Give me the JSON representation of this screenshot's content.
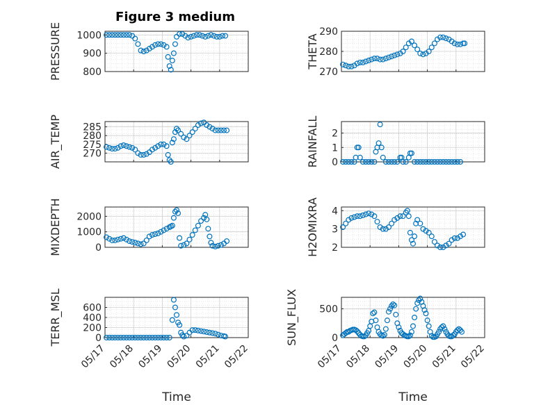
{
  "title": "Figure 3 medium",
  "colors": {
    "marker": "#0072BD",
    "grid": "#dcdcdc",
    "axis": "#262626"
  },
  "chart_data": [
    {
      "type": "scatter",
      "ylabel": "PRESSURE",
      "ylim": [
        800,
        1020
      ],
      "yticks": [
        800,
        900,
        1000
      ],
      "xlabel": "",
      "xticklabels": [],
      "xlim": [
        0,
        5
      ],
      "grid": true,
      "series": [
        {
          "x": [
            0.05,
            0.15,
            0.25,
            0.35,
            0.45,
            0.55,
            0.65,
            0.75,
            0.85,
            0.95,
            1.05,
            1.15,
            1.25,
            1.35,
            1.45,
            1.55,
            1.65,
            1.75,
            1.85,
            1.95,
            2.05,
            2.15,
            2.2,
            2.25,
            2.3,
            2.35,
            2.4,
            2.45,
            2.5,
            2.6,
            2.7,
            2.8,
            2.9,
            3.0,
            3.1,
            3.2,
            3.3,
            3.4,
            3.5,
            3.6,
            3.7,
            3.8,
            3.9,
            4.0,
            4.1,
            4.2
          ],
          "y": [
            1000,
            1000,
            1000,
            1000,
            1000,
            1000,
            1000,
            1000,
            1000,
            995,
            980,
            950,
            915,
            910,
            915,
            925,
            935,
            945,
            950,
            950,
            945,
            935,
            880,
            830,
            810,
            860,
            900,
            950,
            990,
            1005,
            1005,
            995,
            985,
            990,
            995,
            1000,
            1000,
            995,
            990,
            995,
            1000,
            995,
            990,
            990,
            995,
            995
          ]
        }
      ]
    },
    {
      "type": "scatter",
      "ylabel": "THETA",
      "ylim": [
        270,
        290
      ],
      "yticks": [
        270,
        280,
        290
      ],
      "xlabel": "",
      "xticklabels": [],
      "xlim": [
        0,
        5
      ],
      "grid": true,
      "series": [
        {
          "x": [
            0.05,
            0.15,
            0.25,
            0.35,
            0.45,
            0.55,
            0.65,
            0.75,
            0.85,
            0.95,
            1.05,
            1.15,
            1.25,
            1.35,
            1.45,
            1.55,
            1.65,
            1.75,
            1.85,
            1.95,
            2.05,
            2.15,
            2.25,
            2.35,
            2.45,
            2.55,
            2.65,
            2.75,
            2.85,
            2.95,
            3.05,
            3.15,
            3.25,
            3.35,
            3.45,
            3.55,
            3.65,
            3.75,
            3.85,
            3.95,
            4.05,
            4.15,
            4.25,
            4.3
          ],
          "y": [
            273.5,
            273,
            272.5,
            272.5,
            273,
            274,
            274.5,
            274.5,
            275,
            275.5,
            276,
            276.5,
            276.5,
            276,
            276,
            276.5,
            277,
            277.5,
            278,
            278.5,
            279,
            280,
            282,
            284,
            285,
            283,
            281,
            279,
            278.5,
            279,
            280,
            282,
            284,
            286,
            287,
            287,
            286.5,
            286,
            285,
            284,
            283.5,
            283.5,
            284,
            284
          ]
        }
      ]
    },
    {
      "type": "scatter",
      "ylabel": "AIR_TEMP",
      "ylim": [
        265,
        288
      ],
      "yticks": [
        270,
        275,
        280,
        285
      ],
      "xlabel": "",
      "xticklabels": [],
      "xlim": [
        0,
        5
      ],
      "grid": true,
      "series": [
        {
          "x": [
            0.05,
            0.15,
            0.25,
            0.35,
            0.45,
            0.55,
            0.65,
            0.75,
            0.85,
            0.95,
            1.05,
            1.15,
            1.25,
            1.35,
            1.45,
            1.55,
            1.65,
            1.75,
            1.85,
            1.95,
            2.05,
            2.15,
            2.2,
            2.25,
            2.3,
            2.35,
            2.4,
            2.45,
            2.5,
            2.55,
            2.65,
            2.75,
            2.85,
            2.95,
            3.05,
            3.15,
            3.25,
            3.35,
            3.45,
            3.55,
            3.65,
            3.75,
            3.85,
            3.95,
            4.05,
            4.15,
            4.25
          ],
          "y": [
            273.5,
            273,
            272.5,
            272.5,
            273,
            274,
            274.5,
            274,
            273.5,
            273,
            272,
            270,
            269,
            269,
            269.5,
            270.5,
            272,
            273,
            274,
            275,
            275,
            274,
            269,
            266,
            265,
            276,
            278,
            282,
            284,
            283,
            281,
            279,
            278,
            280,
            282,
            284,
            286,
            287,
            287.5,
            286,
            285,
            284,
            283,
            283,
            283,
            283,
            283
          ]
        }
      ]
    },
    {
      "type": "scatter",
      "ylabel": "RAINFALL",
      "ylim": [
        0,
        2.8
      ],
      "yticks": [
        0,
        1,
        2
      ],
      "xlabel": "",
      "xticklabels": [],
      "xlim": [
        0,
        5
      ],
      "grid": true,
      "series": [
        {
          "x": [
            0.05,
            0.15,
            0.25,
            0.35,
            0.45,
            0.5,
            0.55,
            0.6,
            0.65,
            0.75,
            0.85,
            0.95,
            1.05,
            1.15,
            1.2,
            1.25,
            1.3,
            1.35,
            1.4,
            1.45,
            1.55,
            1.65,
            1.75,
            1.85,
            1.95,
            2.05,
            2.1,
            2.15,
            2.25,
            2.35,
            2.4,
            2.45,
            2.55,
            2.65,
            2.75,
            2.85,
            2.95,
            3.05,
            3.15,
            3.25,
            3.35,
            3.45,
            3.55,
            3.65,
            3.75,
            3.85,
            3.95,
            4.05,
            4.15
          ],
          "y": [
            0,
            0,
            0,
            0,
            0,
            0.3,
            1.0,
            1.0,
            0.3,
            0,
            0,
            0,
            0,
            0,
            0.7,
            1.0,
            1.3,
            2.6,
            1.0,
            0.3,
            0,
            0,
            0,
            0,
            0,
            0.3,
            0.3,
            0,
            0,
            0.3,
            0.6,
            0.6,
            0,
            0,
            0,
            0,
            0,
            0,
            0,
            0,
            0,
            0,
            0,
            0,
            0,
            0,
            0,
            0,
            0
          ]
        }
      ]
    },
    {
      "type": "scatter",
      "ylabel": "MIXDEPTH",
      "ylim": [
        0,
        2600
      ],
      "yticks": [
        0,
        1000,
        2000
      ],
      "xlabel": "",
      "xticklabels": [],
      "xlim": [
        0,
        5
      ],
      "grid": true,
      "series": [
        {
          "x": [
            0.05,
            0.15,
            0.25,
            0.35,
            0.45,
            0.55,
            0.65,
            0.75,
            0.85,
            0.95,
            1.05,
            1.15,
            1.25,
            1.35,
            1.45,
            1.55,
            1.65,
            1.75,
            1.85,
            1.95,
            2.05,
            2.15,
            2.25,
            2.3,
            2.35,
            2.4,
            2.45,
            2.5,
            2.55,
            2.6,
            2.65,
            2.75,
            2.85,
            2.95,
            3.05,
            3.15,
            3.25,
            3.35,
            3.45,
            3.5,
            3.55,
            3.6,
            3.65,
            3.7,
            3.75,
            3.85,
            3.95,
            4.05,
            4.15,
            4.25
          ],
          "y": [
            650,
            550,
            450,
            450,
            500,
            550,
            600,
            500,
            400,
            350,
            300,
            250,
            200,
            250,
            450,
            700,
            800,
            850,
            900,
            1000,
            1100,
            1200,
            1300,
            1350,
            1400,
            1900,
            2300,
            2400,
            2200,
            600,
            100,
            150,
            250,
            500,
            800,
            1100,
            1400,
            1700,
            1900,
            2100,
            1800,
            1200,
            700,
            300,
            100,
            50,
            100,
            150,
            250,
            400
          ]
        }
      ]
    },
    {
      "type": "scatter",
      "ylabel": "H2OMIXRA",
      "ylim": [
        2,
        4.2
      ],
      "yticks": [
        2,
        3,
        4
      ],
      "xlabel": "",
      "xticklabels": [],
      "xlim": [
        0,
        5
      ],
      "grid": true,
      "series": [
        {
          "x": [
            0.05,
            0.15,
            0.25,
            0.35,
            0.45,
            0.55,
            0.65,
            0.75,
            0.85,
            0.95,
            1.05,
            1.15,
            1.25,
            1.35,
            1.45,
            1.55,
            1.65,
            1.75,
            1.85,
            1.95,
            2.05,
            2.15,
            2.25,
            2.3,
            2.35,
            2.4,
            2.45,
            2.5,
            2.55,
            2.6,
            2.65,
            2.75,
            2.85,
            2.95,
            3.05,
            3.15,
            3.25,
            3.35,
            3.45,
            3.55,
            3.65,
            3.75,
            3.85,
            3.95,
            4.05,
            4.15,
            4.25
          ],
          "y": [
            3.1,
            3.3,
            3.5,
            3.6,
            3.65,
            3.7,
            3.7,
            3.75,
            3.8,
            3.85,
            3.8,
            3.7,
            3.4,
            3.1,
            3.0,
            3.0,
            3.1,
            3.3,
            3.5,
            3.6,
            3.7,
            3.7,
            3.9,
            4.0,
            3.7,
            2.8,
            2.4,
            2.2,
            2.6,
            3.3,
            3.5,
            3.3,
            3.0,
            2.9,
            2.8,
            2.6,
            2.3,
            2.1,
            2.0,
            2.0,
            2.1,
            2.2,
            2.4,
            2.5,
            2.5,
            2.6,
            2.7
          ]
        }
      ]
    },
    {
      "type": "scatter",
      "ylabel": "TERR_MSL",
      "ylim": [
        0,
        800
      ],
      "yticks": [
        0,
        200,
        400,
        600
      ],
      "xlabel": "Time",
      "xticklabels": [
        "05/17",
        "05/18",
        "05/19",
        "05/20",
        "05/21",
        "05/22"
      ],
      "xlim": [
        0,
        5
      ],
      "grid": true,
      "series": [
        {
          "x": [
            0.05,
            0.15,
            0.25,
            0.35,
            0.45,
            0.55,
            0.65,
            0.75,
            0.85,
            0.95,
            1.05,
            1.15,
            1.25,
            1.35,
            1.45,
            1.55,
            1.65,
            1.75,
            1.85,
            1.95,
            2.05,
            2.15,
            2.25,
            2.35,
            2.4,
            2.45,
            2.5,
            2.55,
            2.6,
            2.65,
            2.7,
            2.75,
            2.85,
            2.95,
            3.05,
            3.15,
            3.25,
            3.35,
            3.45,
            3.55,
            3.65,
            3.75,
            3.85,
            3.95,
            4.05,
            4.15,
            4.2
          ],
          "y": [
            0,
            0,
            0,
            0,
            0,
            0,
            0,
            0,
            0,
            0,
            0,
            0,
            0,
            0,
            0,
            0,
            0,
            0,
            0,
            0,
            0,
            0,
            0,
            350,
            750,
            600,
            450,
            300,
            250,
            100,
            50,
            20,
            40,
            100,
            150,
            150,
            140,
            130,
            120,
            110,
            100,
            90,
            80,
            60,
            40,
            30,
            20
          ]
        }
      ]
    },
    {
      "type": "scatter",
      "ylabel": "SUN_FLUX",
      "ylim": [
        0,
        700
      ],
      "yticks": [
        0,
        500
      ],
      "xlabel": "Time",
      "xticklabels": [
        "05/17",
        "05/18",
        "05/19",
        "05/20",
        "05/21",
        "05/22"
      ],
      "xlim": [
        0,
        5
      ],
      "grid": true,
      "series": [
        {
          "x": [
            0.05,
            0.1,
            0.15,
            0.2,
            0.25,
            0.3,
            0.35,
            0.4,
            0.45,
            0.5,
            0.55,
            0.6,
            0.65,
            0.7,
            0.75,
            0.8,
            0.85,
            0.9,
            0.95,
            1.0,
            1.05,
            1.1,
            1.15,
            1.2,
            1.25,
            1.3,
            1.35,
            1.4,
            1.45,
            1.5,
            1.55,
            1.6,
            1.65,
            1.7,
            1.75,
            1.8,
            1.85,
            1.9,
            1.95,
            2.0,
            2.05,
            2.1,
            2.15,
            2.2,
            2.25,
            2.3,
            2.35,
            2.4,
            2.45,
            2.5,
            2.55,
            2.6,
            2.65,
            2.7,
            2.75,
            2.8,
            2.85,
            2.9,
            2.95,
            3.0,
            3.05,
            3.1,
            3.15,
            3.2,
            3.25,
            3.3,
            3.35,
            3.4,
            3.45,
            3.5,
            3.55,
            3.6,
            3.65,
            3.7,
            3.75,
            3.8,
            3.85,
            3.9,
            3.95,
            4.0,
            4.05,
            4.1,
            4.15,
            4.2
          ],
          "y": [
            40,
            60,
            80,
            100,
            100,
            120,
            130,
            140,
            140,
            130,
            110,
            80,
            50,
            30,
            20,
            20,
            40,
            80,
            120,
            200,
            280,
            420,
            440,
            300,
            180,
            100,
            60,
            40,
            30,
            50,
            150,
            300,
            450,
            500,
            550,
            580,
            560,
            400,
            250,
            180,
            120,
            80,
            60,
            40,
            30,
            20,
            20,
            40,
            100,
            200,
            350,
            500,
            600,
            650,
            680,
            620,
            550,
            480,
            420,
            300,
            200,
            100,
            30,
            10,
            10,
            20,
            60,
            100,
            150,
            180,
            200,
            150,
            100,
            60,
            30,
            20,
            20,
            40,
            60,
            100,
            130,
            150,
            130,
            100
          ]
        }
      ]
    }
  ]
}
